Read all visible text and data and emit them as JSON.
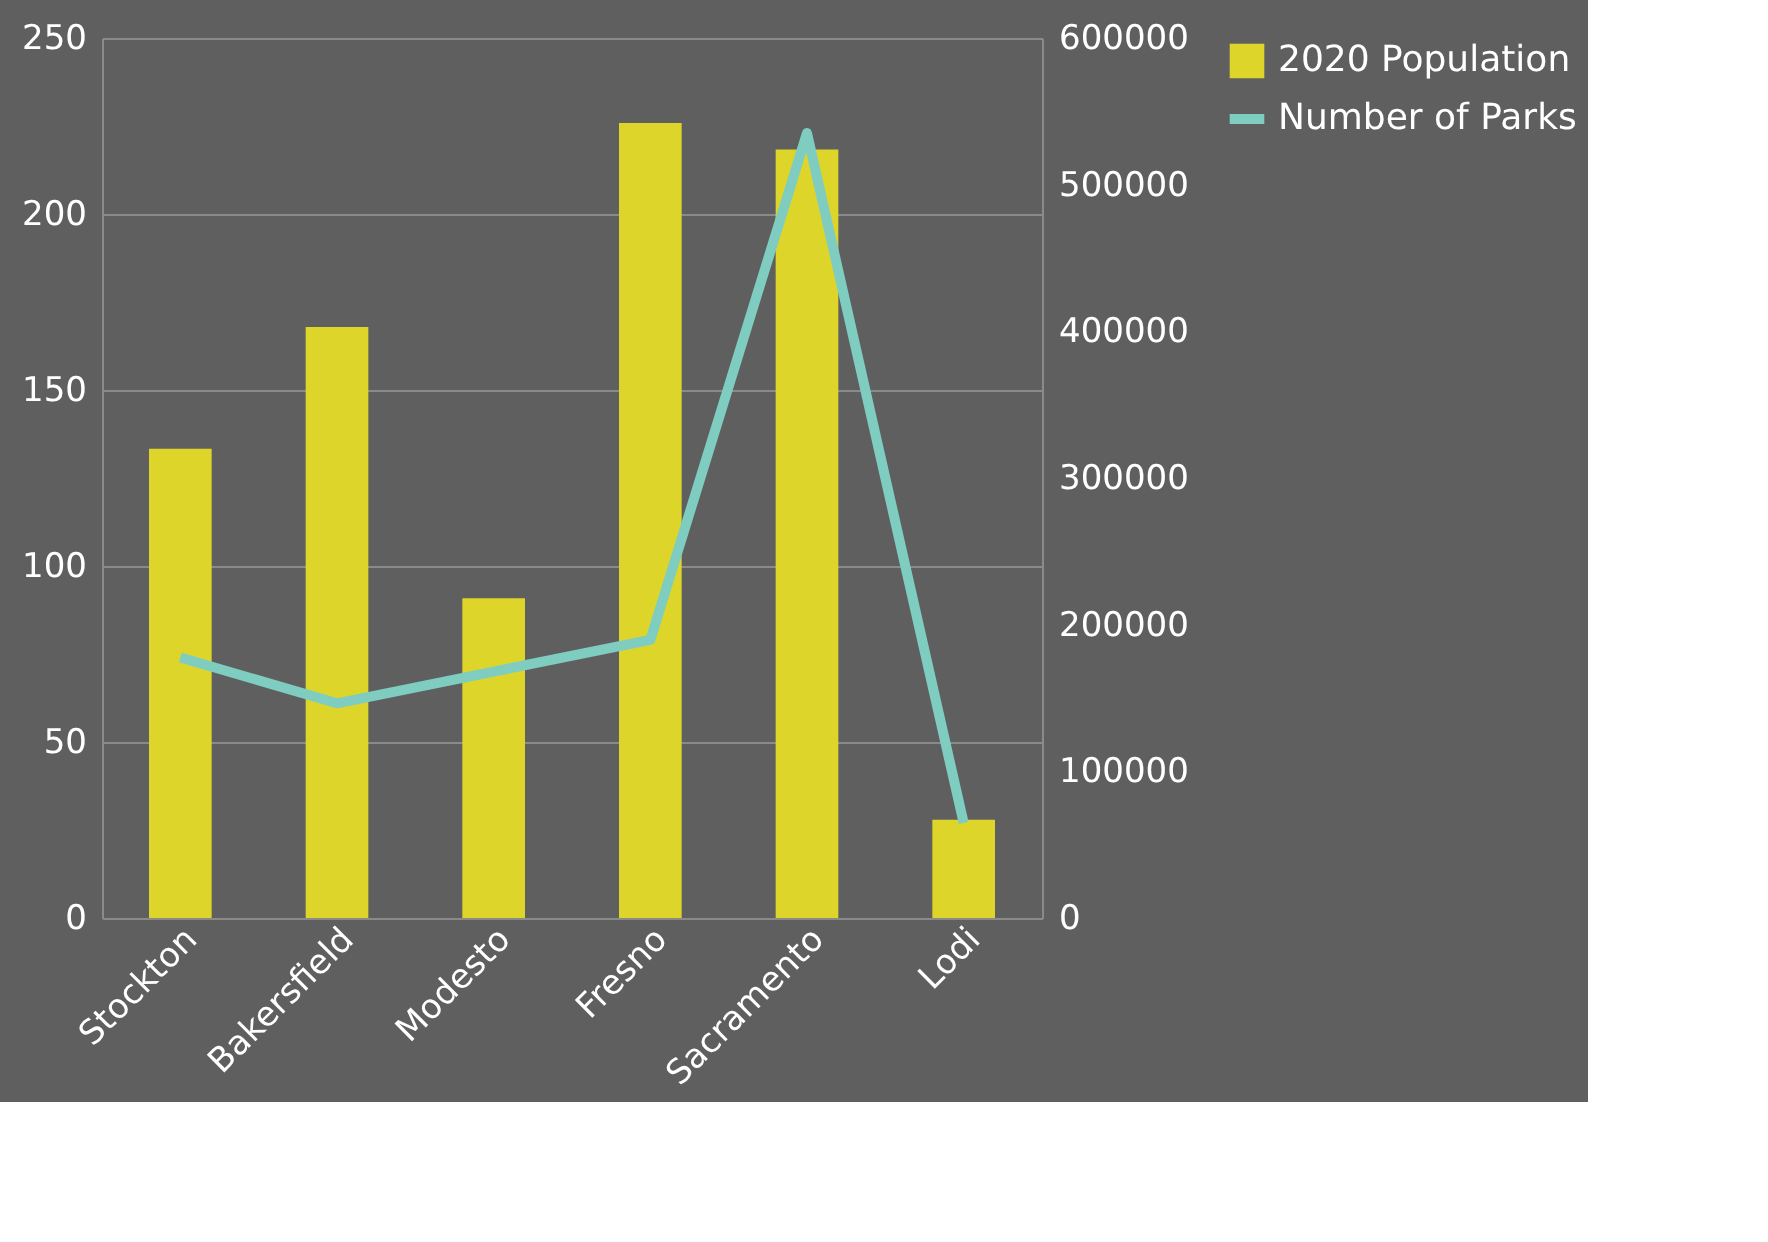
{
  "chart_data": {
    "type": "bar",
    "categories": [
      "Stockton",
      "Bakersfield",
      "Modesto",
      "Fresno",
      "Sacramento",
      "Lodi"
    ],
    "series": [
      {
        "name": "2020 Population",
        "axis": "y2",
        "color": "#ddd52a",
        "values": [
          320000,
          403000,
          218000,
          542000,
          524000,
          67000
        ]
      },
      {
        "name": "Number of Parks",
        "type": "line",
        "axis": "y",
        "color": "#7ecdc0",
        "values": [
          74,
          61,
          70,
          79,
          223,
          27
        ]
      }
    ],
    "ylim": [
      0,
      250
    ],
    "yticks": [
      0,
      50,
      100,
      150,
      200,
      250
    ],
    "y2lim": [
      0,
      600000
    ],
    "y2ticks": [
      0,
      100000,
      200000,
      300000,
      400000,
      500000,
      600000
    ],
    "grid": "y",
    "legend": "right",
    "line_style": "solid",
    "marker": "none"
  }
}
